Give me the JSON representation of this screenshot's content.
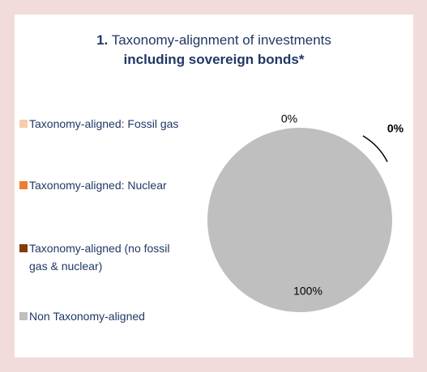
{
  "chart_data": {
    "type": "pie",
    "title_number": "1.",
    "title": "Taxonomy-alignment of investments",
    "subtitle": "including sovereign bonds*",
    "categories": [
      "Taxonomy-aligned: Fossil gas",
      "Taxonomy-aligned: Nuclear",
      "Taxonomy-aligned (no fossil gas & nuclear)",
      "Non Taxonomy-aligned"
    ],
    "values": [
      0,
      0,
      0,
      100
    ],
    "value_labels": [
      "0%",
      "0%",
      null,
      "100%"
    ],
    "colors": [
      "#f8cbad",
      "#ed7d31",
      "#843c0c",
      "#bfbfbf"
    ]
  }
}
